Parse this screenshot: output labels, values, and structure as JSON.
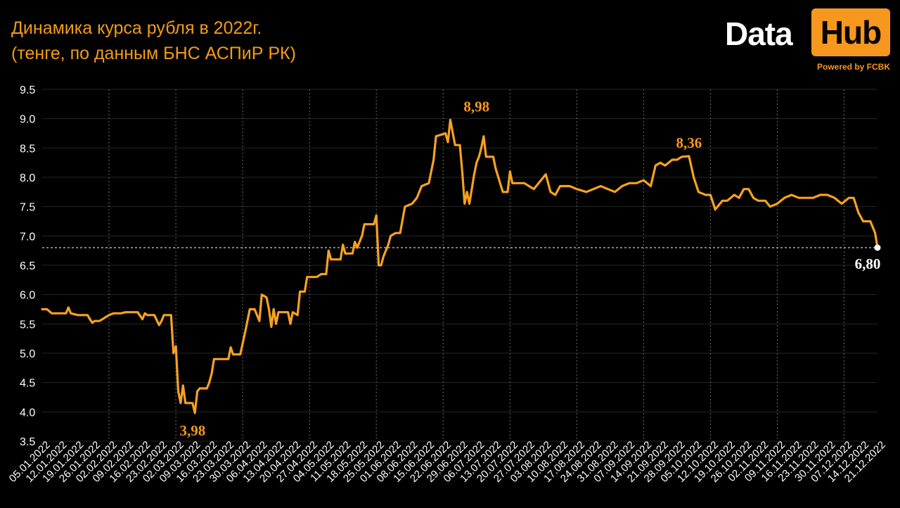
{
  "title_line1": "Динамика курса рубля в 2022г.",
  "title_line2": "(тенге, по данным БНС АСПиР РК)",
  "logo": {
    "word1": "Data",
    "word2": "Hub",
    "powered": "Powered by FCBK"
  },
  "colors": {
    "line": "#f7a21e",
    "accent": "#f7971e",
    "background": "#000000",
    "grid": "#6b6b6b",
    "text": "#ffffff"
  },
  "chart_data": {
    "type": "line",
    "ylim": [
      3.5,
      9.5
    ],
    "yticks": [
      "9.5",
      "9.0",
      "8.5",
      "8.0",
      "7.5",
      "7.0",
      "6.5",
      "6.0",
      "5.5",
      "5.0",
      "4.5",
      "4.0",
      "3.5"
    ],
    "xticks": [
      "05.01.2022",
      "12.01.2022",
      "19.01.2022",
      "26.01.2022",
      "02.02.2022",
      "09.02.2022",
      "16.02.2022",
      "23.02.2022",
      "02.03.2022",
      "09.03.2022",
      "16.03.2022",
      "23.03.2022",
      "30.03.2022",
      "06.04.2022",
      "13.04.2022",
      "20.04.2022",
      "27.04.2022",
      "04.05.2022",
      "11.05.2022",
      "18.05.2022",
      "25.05.2022",
      "01.06.2022",
      "08.06.2022",
      "15.06.2022",
      "22.06.2022",
      "29.06.2022",
      "06.07.2022",
      "13.07.2022",
      "20.07.2022",
      "27.07.2022",
      "03.08.2022",
      "10.08.2022",
      "17.08.2022",
      "24.08.2022",
      "31.08.2022",
      "07.09.2022",
      "14.09.2022",
      "21.09.2022",
      "28.09.2022",
      "05.10.2022",
      "12.10.2022",
      "19.10.2022",
      "26.10.2022",
      "02.11.2022",
      "09.11.2022",
      "16.11.2022",
      "23.11.2022",
      "30.11.2022",
      "07.12.2022",
      "14.12.2022",
      "21.12.2022"
    ],
    "x_start": "05.01.2022",
    "reference_line": 6.8,
    "annotations": [
      {
        "date": "09.03.2022",
        "value": 3.98,
        "label": "3,98"
      },
      {
        "date": "06.07.2022",
        "value": 8.98,
        "label": "8,98"
      },
      {
        "date": "03.10.2022",
        "value": 8.36,
        "label": "8,36"
      },
      {
        "date": "21.12.2022",
        "value": 6.8,
        "label": "6,80"
      }
    ],
    "points": [
      [
        "05.01.2022",
        5.75
      ],
      [
        "07.01.2022",
        5.75
      ],
      [
        "09.01.2022",
        5.68
      ],
      [
        "12.01.2022",
        5.68
      ],
      [
        "15.01.2022",
        5.68
      ],
      [
        "16.01.2022",
        5.78
      ],
      [
        "17.01.2022",
        5.68
      ],
      [
        "20.01.2022",
        5.65
      ],
      [
        "24.01.2022",
        5.65
      ],
      [
        "25.01.2022",
        5.58
      ],
      [
        "26.01.2022",
        5.52
      ],
      [
        "27.01.2022",
        5.55
      ],
      [
        "29.01.2022",
        5.55
      ],
      [
        "31.01.2022",
        5.6
      ],
      [
        "02.02.2022",
        5.65
      ],
      [
        "04.02.2022",
        5.68
      ],
      [
        "07.02.2022",
        5.68
      ],
      [
        "09.02.2022",
        5.7
      ],
      [
        "12.02.2022",
        5.7
      ],
      [
        "14.02.2022",
        5.7
      ],
      [
        "16.02.2022",
        5.58
      ],
      [
        "17.02.2022",
        5.68
      ],
      [
        "18.02.2022",
        5.65
      ],
      [
        "21.02.2022",
        5.65
      ],
      [
        "23.02.2022",
        5.48
      ],
      [
        "24.02.2022",
        5.55
      ],
      [
        "25.02.2022",
        5.65
      ],
      [
        "28.02.2022",
        5.65
      ],
      [
        "01.03.2022",
        5.0
      ],
      [
        "02.03.2022",
        5.12
      ],
      [
        "03.03.2022",
        4.35
      ],
      [
        "04.03.2022",
        4.15
      ],
      [
        "05.03.2022",
        4.45
      ],
      [
        "06.03.2022",
        4.15
      ],
      [
        "09.03.2022",
        4.15
      ],
      [
        "10.03.2022",
        3.98
      ],
      [
        "11.03.2022",
        4.35
      ],
      [
        "12.03.2022",
        4.4
      ],
      [
        "15.03.2022",
        4.4
      ],
      [
        "16.03.2022",
        4.5
      ],
      [
        "17.03.2022",
        4.65
      ],
      [
        "18.03.2022",
        4.9
      ],
      [
        "24.03.2022",
        4.9
      ],
      [
        "25.03.2022",
        5.1
      ],
      [
        "26.03.2022",
        4.98
      ],
      [
        "29.03.2022",
        4.98
      ],
      [
        "31.03.2022",
        5.35
      ],
      [
        "02.04.2022",
        5.75
      ],
      [
        "04.04.2022",
        5.75
      ],
      [
        "06.04.2022",
        5.55
      ],
      [
        "07.04.2022",
        6.0
      ],
      [
        "09.04.2022",
        5.95
      ],
      [
        "10.04.2022",
        5.75
      ],
      [
        "11.04.2022",
        5.45
      ],
      [
        "12.04.2022",
        5.75
      ],
      [
        "13.04.2022",
        5.5
      ],
      [
        "14.04.2022",
        5.7
      ],
      [
        "18.04.2022",
        5.7
      ],
      [
        "19.04.2022",
        5.5
      ],
      [
        "20.04.2022",
        5.7
      ],
      [
        "22.04.2022",
        5.65
      ],
      [
        "23.04.2022",
        6.05
      ],
      [
        "25.04.2022",
        6.05
      ],
      [
        "26.04.2022",
        6.3
      ],
      [
        "30.04.2022",
        6.3
      ],
      [
        "02.05.2022",
        6.35
      ],
      [
        "04.05.2022",
        6.35
      ],
      [
        "05.05.2022",
        6.75
      ],
      [
        "06.05.2022",
        6.6
      ],
      [
        "10.05.2022",
        6.6
      ],
      [
        "11.05.2022",
        6.85
      ],
      [
        "12.05.2022",
        6.7
      ],
      [
        "15.05.2022",
        6.7
      ],
      [
        "16.05.2022",
        6.9
      ],
      [
        "17.05.2022",
        6.8
      ],
      [
        "19.05.2022",
        7.0
      ],
      [
        "20.05.2022",
        7.2
      ],
      [
        "24.05.2022",
        7.2
      ],
      [
        "25.05.2022",
        7.35
      ],
      [
        "26.05.2022",
        6.5
      ],
      [
        "27.05.2022",
        6.5
      ],
      [
        "28.05.2022",
        6.65
      ],
      [
        "30.05.2022",
        6.85
      ],
      [
        "31.05.2022",
        7.0
      ],
      [
        "02.06.2022",
        7.05
      ],
      [
        "04.06.2022",
        7.05
      ],
      [
        "06.06.2022",
        7.5
      ],
      [
        "09.06.2022",
        7.55
      ],
      [
        "11.06.2022",
        7.65
      ],
      [
        "13.06.2022",
        7.85
      ],
      [
        "16.06.2022",
        7.9
      ],
      [
        "18.06.2022",
        8.3
      ],
      [
        "19.06.2022",
        8.7
      ],
      [
        "23.06.2022",
        8.75
      ],
      [
        "24.06.2022",
        8.6
      ],
      [
        "25.06.2022",
        8.98
      ],
      [
        "27.06.2022",
        8.55
      ],
      [
        "29.06.2022",
        8.55
      ],
      [
        "30.06.2022",
        8.1
      ],
      [
        "01.07.2022",
        7.55
      ],
      [
        "02.07.2022",
        7.75
      ],
      [
        "03.07.2022",
        7.55
      ],
      [
        "05.07.2022",
        8.05
      ],
      [
        "06.07.2022",
        8.25
      ],
      [
        "07.07.2022",
        8.35
      ],
      [
        "08.07.2022",
        8.5
      ],
      [
        "09.07.2022",
        8.7
      ],
      [
        "10.07.2022",
        8.35
      ],
      [
        "13.07.2022",
        8.35
      ],
      [
        "14.07.2022",
        8.15
      ],
      [
        "17.07.2022",
        7.75
      ],
      [
        "19.07.2022",
        7.75
      ],
      [
        "20.07.2022",
        8.1
      ],
      [
        "21.07.2022",
        7.9
      ],
      [
        "26.07.2022",
        7.9
      ],
      [
        "28.07.2022",
        7.85
      ],
      [
        "30.07.2022",
        7.8
      ],
      [
        "04.08.2022",
        8.05
      ],
      [
        "06.08.2022",
        7.75
      ],
      [
        "08.08.2022",
        7.7
      ],
      [
        "10.08.2022",
        7.85
      ],
      [
        "14.08.2022",
        7.85
      ],
      [
        "17.08.2022",
        7.8
      ],
      [
        "21.08.2022",
        7.75
      ],
      [
        "24.08.2022",
        7.8
      ],
      [
        "27.08.2022",
        7.85
      ],
      [
        "30.08.2022",
        7.8
      ],
      [
        "02.09.2022",
        7.75
      ],
      [
        "05.09.2022",
        7.85
      ],
      [
        "08.09.2022",
        7.9
      ],
      [
        "11.09.2022",
        7.9
      ],
      [
        "14.09.2022",
        7.95
      ],
      [
        "17.09.2022",
        7.85
      ],
      [
        "19.09.2022",
        8.2
      ],
      [
        "21.09.2022",
        8.25
      ],
      [
        "23.09.2022",
        8.2
      ],
      [
        "26.09.2022",
        8.3
      ],
      [
        "28.09.2022",
        8.3
      ],
      [
        "30.09.2022",
        8.35
      ],
      [
        "03.10.2022",
        8.36
      ],
      [
        "05.10.2022",
        8.0
      ],
      [
        "07.10.2022",
        7.75
      ],
      [
        "10.10.2022",
        7.7
      ],
      [
        "12.10.2022",
        7.7
      ],
      [
        "14.10.2022",
        7.45
      ],
      [
        "17.10.2022",
        7.6
      ],
      [
        "19.10.2022",
        7.6
      ],
      [
        "22.10.2022",
        7.7
      ],
      [
        "24.10.2022",
        7.65
      ],
      [
        "26.10.2022",
        7.8
      ],
      [
        "28.10.2022",
        7.8
      ],
      [
        "30.10.2022",
        7.65
      ],
      [
        "01.11.2022",
        7.6
      ],
      [
        "04.11.2022",
        7.6
      ],
      [
        "06.11.2022",
        7.5
      ],
      [
        "09.11.2022",
        7.55
      ],
      [
        "12.11.2022",
        7.65
      ],
      [
        "15.11.2022",
        7.7
      ],
      [
        "18.11.2022",
        7.65
      ],
      [
        "21.11.2022",
        7.65
      ],
      [
        "24.11.2022",
        7.65
      ],
      [
        "27.11.2022",
        7.7
      ],
      [
        "30.11.2022",
        7.7
      ],
      [
        "03.12.2022",
        7.65
      ],
      [
        "06.12.2022",
        7.55
      ],
      [
        "09.12.2022",
        7.65
      ],
      [
        "11.12.2022",
        7.65
      ],
      [
        "13.12.2022",
        7.4
      ],
      [
        "15.12.2022",
        7.25
      ],
      [
        "18.12.2022",
        7.25
      ],
      [
        "20.12.2022",
        7.05
      ],
      [
        "21.12.2022",
        6.8
      ]
    ]
  }
}
